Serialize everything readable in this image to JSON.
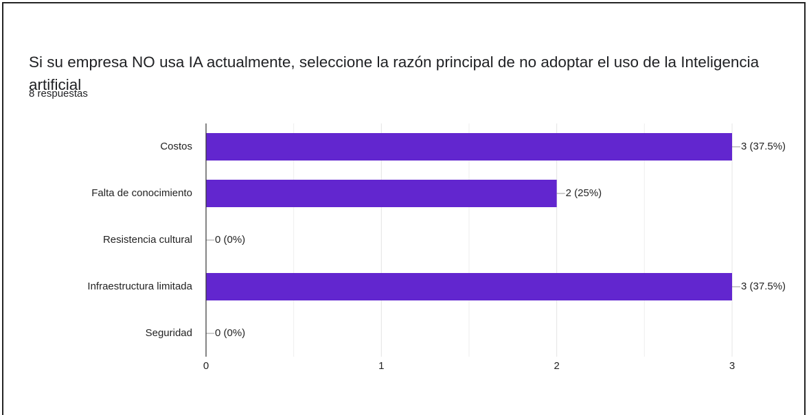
{
  "chart_data": {
    "type": "hbar",
    "title": "Si su empresa NO usa IA actualmente, seleccione la razón principal de no adoptar el uso de la Inteligencia artificial",
    "subtitle": "8 respuestas",
    "categories": [
      "Costos",
      "Falta de conocimiento",
      "Resistencia cultural",
      "Infraestructura limitada",
      "Seguridad"
    ],
    "values": [
      3,
      2,
      0,
      3,
      0
    ],
    "value_labels": [
      "3 (37.5%)",
      "2 (25%)",
      "0 (0%)",
      "3 (37.5%)",
      "0 (0%)"
    ],
    "color": "#6226cf",
    "xlim": [
      0,
      3
    ],
    "xticks": [
      0,
      1,
      2,
      3
    ],
    "xminorticks": [
      0.5,
      1.5,
      2.5
    ],
    "grid": true
  }
}
